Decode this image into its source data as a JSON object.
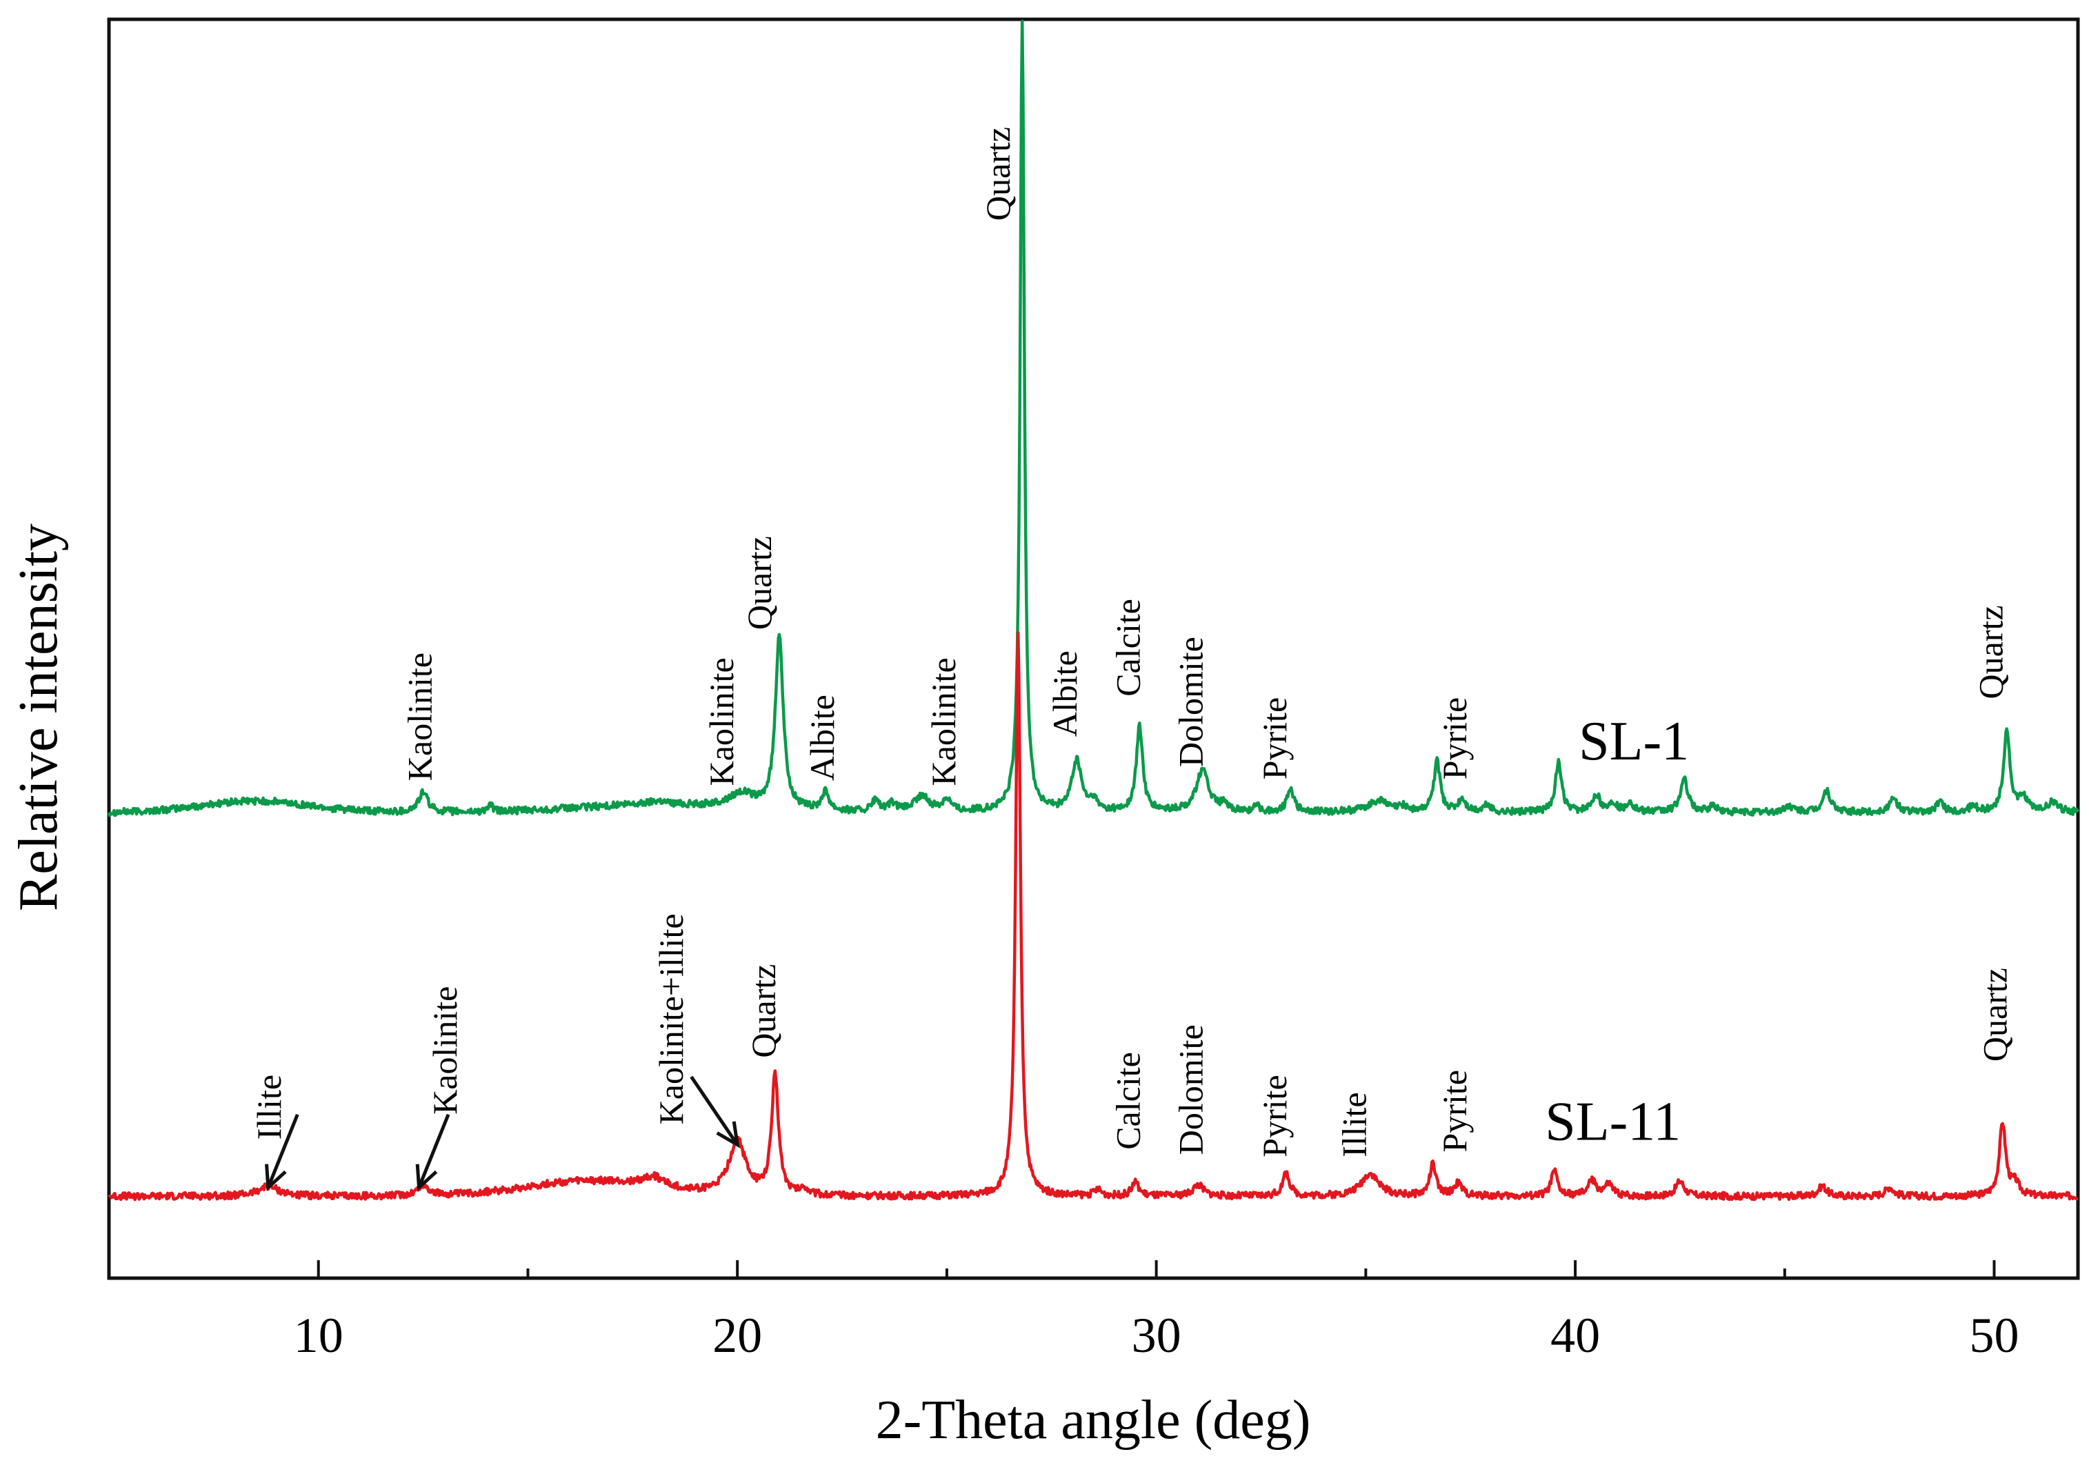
{
  "chart_data": {
    "type": "line",
    "title": "",
    "xlabel": "2-Theta angle (deg)",
    "ylabel": "Relative intensity",
    "xlim": [
      5,
      52
    ],
    "ylim": [
      0,
      100
    ],
    "x_ticks": [
      10,
      20,
      30,
      40,
      50
    ],
    "x_tick_labels": [
      "10",
      "20",
      "30",
      "40",
      "50"
    ],
    "y_ticks_visible": false,
    "grid": false,
    "series": [
      {
        "name": "SL-1",
        "color": "#0a9a4a",
        "baseline": 37.0,
        "peaks": [
          [
            12.5,
            1.6,
            0.13
          ],
          [
            14.1,
            0.5,
            0.08
          ],
          [
            18.1,
            0.3,
            0.25
          ],
          [
            20.1,
            1.2,
            0.35
          ],
          [
            21.0,
            14.0,
            0.11
          ],
          [
            22.1,
            1.5,
            0.11
          ],
          [
            23.3,
            0.9,
            0.1
          ],
          [
            23.7,
            0.6,
            0.1
          ],
          [
            24.4,
            1.2,
            0.22
          ],
          [
            25.0,
            1.0,
            0.12
          ],
          [
            26.8,
            63.0,
            0.06
          ],
          [
            28.1,
            4.0,
            0.14
          ],
          [
            28.5,
            0.8,
            0.1
          ],
          [
            29.6,
            6.8,
            0.09
          ],
          [
            31.1,
            3.3,
            0.18
          ],
          [
            31.6,
            0.5,
            0.1
          ],
          [
            32.4,
            0.4,
            0.1
          ],
          [
            33.2,
            2.0,
            0.09
          ],
          [
            35.3,
            0.9,
            0.3
          ],
          [
            35.9,
            0.4,
            0.12
          ],
          [
            36.7,
            4.0,
            0.09
          ],
          [
            37.3,
            1.0,
            0.1
          ],
          [
            37.9,
            0.6,
            0.1
          ],
          [
            39.6,
            3.9,
            0.09
          ],
          [
            40.5,
            1.4,
            0.11
          ],
          [
            40.9,
            0.7,
            0.1
          ],
          [
            41.3,
            0.8,
            0.1
          ],
          [
            42.6,
            2.6,
            0.11
          ],
          [
            43.3,
            0.5,
            0.1
          ],
          [
            45.1,
            0.5,
            0.12
          ],
          [
            46.0,
            1.7,
            0.11
          ],
          [
            47.6,
            1.0,
            0.12
          ],
          [
            48.7,
            0.8,
            0.1
          ],
          [
            49.5,
            0.5,
            0.1
          ],
          [
            50.3,
            6.5,
            0.09
          ],
          [
            50.7,
            1.1,
            0.12
          ],
          [
            51.4,
            0.8,
            0.15
          ]
        ],
        "broad": [
          [
            8.5,
            0.9,
            1.8
          ],
          [
            18.0,
            0.6,
            2.5
          ]
        ]
      },
      {
        "name": "SL-11",
        "color": "#e3171f",
        "baseline": 6.5,
        "peaks": [
          [
            8.8,
            0.8,
            0.3
          ],
          [
            12.5,
            0.8,
            0.18
          ],
          [
            18.0,
            0.8,
            0.3
          ],
          [
            20.0,
            4.3,
            0.24
          ],
          [
            20.9,
            9.4,
            0.1
          ],
          [
            21.6,
            0.5,
            0.12
          ],
          [
            26.7,
            44.5,
            0.07
          ],
          [
            28.6,
            0.5,
            0.1
          ],
          [
            29.5,
            1.1,
            0.1
          ],
          [
            31.0,
            0.9,
            0.15
          ],
          [
            33.1,
            1.8,
            0.1
          ],
          [
            35.1,
            1.8,
            0.25
          ],
          [
            36.6,
            2.5,
            0.09
          ],
          [
            37.2,
            1.0,
            0.12
          ],
          [
            39.5,
            2.0,
            0.09
          ],
          [
            40.4,
            1.2,
            0.12
          ],
          [
            40.8,
            0.9,
            0.12
          ],
          [
            42.5,
            1.2,
            0.12
          ],
          [
            45.9,
            0.8,
            0.12
          ],
          [
            47.5,
            0.7,
            0.12
          ],
          [
            50.2,
            5.8,
            0.09
          ],
          [
            50.5,
            1.0,
            0.12
          ]
        ],
        "broad": [
          [
            16.5,
            1.2,
            2.2
          ]
        ]
      }
    ],
    "series_labels": [
      {
        "text": "SL-1",
        "x": 41.4,
        "y": 41.2
      },
      {
        "text": "SL-11",
        "x": 40.9,
        "y": 11.0
      }
    ],
    "peak_annotations": [
      {
        "text": "Quartz",
        "x": 26.5,
        "y": 84.0,
        "series": "SL-1"
      },
      {
        "text": "Kaolinite",
        "x": 12.7,
        "y": 39.5,
        "series": "SL-1"
      },
      {
        "text": "Kaolinite",
        "x": 19.9,
        "y": 39.1,
        "series": "SL-1"
      },
      {
        "text": "Quartz",
        "x": 20.8,
        "y": 51.5,
        "series": "SL-1"
      },
      {
        "text": "Albite",
        "x": 22.3,
        "y": 39.5,
        "series": "SL-1"
      },
      {
        "text": "Kaolinite",
        "x": 25.2,
        "y": 39.1,
        "series": "SL-1"
      },
      {
        "text": "Albite",
        "x": 28.1,
        "y": 43.0,
        "series": "SL-1"
      },
      {
        "text": "Calcite",
        "x": 29.6,
        "y": 46.2,
        "series": "SL-1"
      },
      {
        "text": "Dolomite",
        "x": 31.1,
        "y": 40.6,
        "series": "SL-1"
      },
      {
        "text": "Pyrite",
        "x": 33.1,
        "y": 39.6,
        "series": "SL-1"
      },
      {
        "text": "Pyrite",
        "x": 37.4,
        "y": 39.6,
        "series": "SL-1"
      },
      {
        "text": "Quartz",
        "x": 50.2,
        "y": 46.0,
        "series": "SL-1"
      },
      {
        "text": "Illite",
        "x": 9.1,
        "y": 11.0,
        "series": "SL-11"
      },
      {
        "text": "Kaolinite",
        "x": 13.3,
        "y": 13.0,
        "series": "SL-11"
      },
      {
        "text": "Kaolinite+illite",
        "x": 18.7,
        "y": 12.2,
        "series": "SL-11"
      },
      {
        "text": "Quartz",
        "x": 20.9,
        "y": 17.5,
        "series": "SL-11"
      },
      {
        "text": "Calcite",
        "x": 29.6,
        "y": 10.2,
        "series": "SL-11"
      },
      {
        "text": "Dolomite",
        "x": 31.1,
        "y": 9.8,
        "series": "SL-11"
      },
      {
        "text": "Pyrite",
        "x": 33.1,
        "y": 9.6,
        "series": "SL-11"
      },
      {
        "text": "Illite",
        "x": 35.0,
        "y": 9.6,
        "series": "SL-11"
      },
      {
        "text": "Pyrite",
        "x": 37.4,
        "y": 10.0,
        "series": "SL-11"
      },
      {
        "text": "Quartz",
        "x": 50.3,
        "y": 17.2,
        "series": "SL-11"
      }
    ],
    "arrows": [
      {
        "series": "SL-11",
        "from": [
          9.5,
          13.0
        ],
        "to": [
          8.8,
          7.2
        ]
      },
      {
        "series": "SL-11",
        "from": [
          13.1,
          13.0
        ],
        "to": [
          12.4,
          7.2
        ]
      },
      {
        "series": "SL-11",
        "from": [
          18.9,
          16.0
        ],
        "to": [
          20.0,
          10.6
        ]
      }
    ]
  }
}
